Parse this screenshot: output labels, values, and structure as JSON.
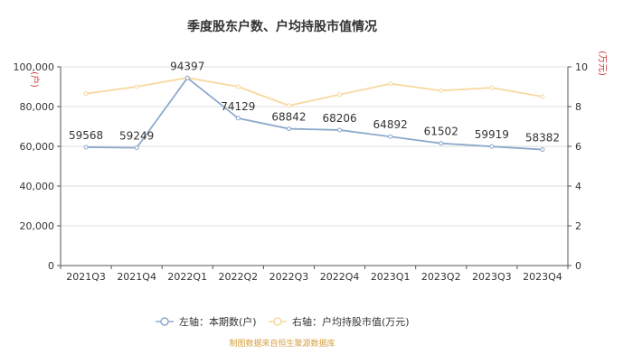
{
  "chart_data": {
    "type": "line",
    "title": "季度股东户数、户均持股市值情况",
    "categories": [
      "2021Q3",
      "2021Q4",
      "2022Q1",
      "2022Q2",
      "2022Q3",
      "2022Q4",
      "2023Q1",
      "2023Q2",
      "2023Q3",
      "2023Q4"
    ],
    "series": [
      {
        "name": "左轴：本期数(户)",
        "axis": "left",
        "color": "#8eaacc",
        "values": [
          59568,
          59249,
          94397,
          74129,
          68842,
          68206,
          64892,
          61502,
          59919,
          58382
        ],
        "labels": [
          "59568",
          "59249",
          "94397",
          "74129",
          "68842",
          "68206",
          "64892",
          "61502",
          "59919",
          "58382"
        ]
      },
      {
        "name": "右轴：户均持股市值(万元)",
        "axis": "right",
        "color": "#f7d9a0",
        "values": [
          8.65,
          9.0,
          9.45,
          9.0,
          8.05,
          8.6,
          9.15,
          8.8,
          8.95,
          8.5
        ]
      }
    ],
    "y_left": {
      "min": 0,
      "max": 100000,
      "ticks": [
        "0",
        "20,000",
        "40,000",
        "60,000",
        "80,000",
        "100,000"
      ],
      "unit": "(户)"
    },
    "y_right": {
      "min": 0,
      "max": 10,
      "ticks": [
        "0",
        "2",
        "4",
        "6",
        "8",
        "10"
      ],
      "unit": "(万元)"
    },
    "source": "制图数据来自恒生聚源数据库"
  }
}
